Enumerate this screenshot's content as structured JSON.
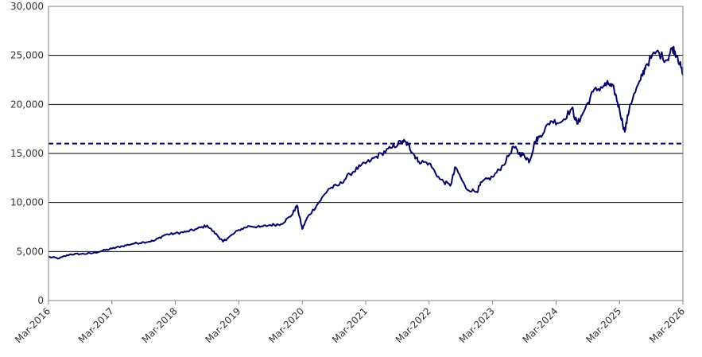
{
  "chart_data": {
    "type": "line",
    "title": "",
    "xlabel": "",
    "ylabel": "",
    "ylim": [
      0,
      30000
    ],
    "y_ticks": [
      "0",
      "5,000",
      "10,000",
      "15,000",
      "20,000",
      "25,000",
      "30,000"
    ],
    "y_tick_values": [
      0,
      5000,
      10000,
      15000,
      20000,
      25000,
      30000
    ],
    "x_ticks": [
      "Mar-2016",
      "Mar-2017",
      "Mar-2018",
      "Mar-2019",
      "Mar-2020",
      "Mar-2021",
      "Mar-2022",
      "Mar-2023",
      "Mar-2024",
      "Mar-2025",
      "Mar-2026"
    ],
    "grid": "horizontal",
    "legend": "none",
    "reference_line": {
      "value": 16000,
      "style": "dashed",
      "color": "#000066"
    },
    "line_color": "#000066",
    "series": [
      {
        "x": [
          "2016-03",
          "2016-05",
          "2016-07",
          "2016-09",
          "2016-11",
          "2017-01",
          "2017-03",
          "2017-05",
          "2017-07",
          "2017-09",
          "2017-11",
          "2018-01",
          "2018-03",
          "2018-05",
          "2018-07",
          "2018-09",
          "2018-11",
          "2018-12",
          "2019-01",
          "2019-03",
          "2019-05",
          "2019-07",
          "2019-09",
          "2019-11",
          "2020-01",
          "2020-02",
          "2020-03",
          "2020-04",
          "2020-06",
          "2020-08",
          "2020-10",
          "2020-12",
          "2021-02",
          "2021-04",
          "2021-06",
          "2021-08",
          "2021-10",
          "2021-11",
          "2021-12",
          "2022-01",
          "2022-03",
          "2022-05",
          "2022-07",
          "2022-08",
          "2022-10",
          "2022-12",
          "2023-01",
          "2023-03",
          "2023-05",
          "2023-07",
          "2023-08",
          "2023-09",
          "2023-10",
          "2023-11",
          "2023-12",
          "2024-02",
          "2024-04",
          "2024-06",
          "2024-07",
          "2024-08",
          "2024-10",
          "2024-12",
          "2025-01",
          "2025-02",
          "2025-03",
          "2025-04",
          "2025-05",
          "2025-07",
          "2025-08",
          "2025-10",
          "2025-12",
          "2026-01",
          "2026-02",
          "2026-03"
        ],
        "values": [
          4450,
          4300,
          4700,
          4750,
          4800,
          5050,
          5300,
          5550,
          5800,
          5950,
          6100,
          6700,
          6850,
          7000,
          7300,
          7650,
          6600,
          6000,
          6400,
          7200,
          7600,
          7500,
          7700,
          7800,
          8700,
          9700,
          7300,
          8500,
          9900,
          11400,
          11800,
          12900,
          13700,
          14300,
          15000,
          15600,
          16300,
          15900,
          15000,
          14200,
          14000,
          12400,
          11700,
          13600,
          11400,
          11100,
          12100,
          12600,
          13800,
          15700,
          15000,
          14800,
          14200,
          16200,
          16800,
          18300,
          18200,
          19600,
          18000,
          19000,
          21300,
          21900,
          22100,
          21500,
          19500,
          17200,
          20000,
          22500,
          24000,
          25400,
          24500,
          25800,
          24900,
          23000
        ]
      }
    ]
  }
}
